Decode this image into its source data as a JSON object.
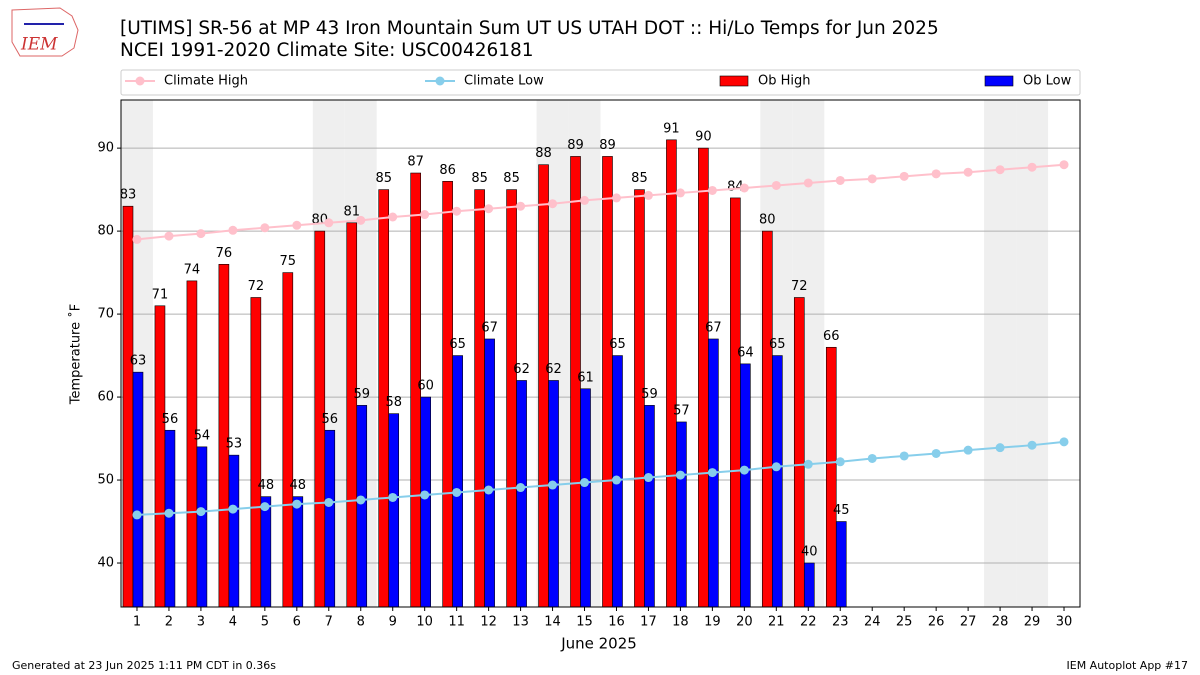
{
  "chart_data": {
    "type": "bar",
    "title": "[UTIMS] SR-56 at MP 43 Iron Mountain Sum UT US UTAH DOT :: Hi/Lo Temps for Jun 2025",
    "subtitle": "NCEI 1991-2020 Climate Site: USC00426181",
    "logo": "IEM",
    "x_label": "June 2025",
    "y_label": "Temperature ˚F",
    "footer_left": "Generated at 23 Jun 2025 1:11 PM CDT in 0.36s",
    "footer_right": "IEM Autoplot App #17",
    "x": [
      1,
      2,
      3,
      4,
      5,
      6,
      7,
      8,
      9,
      10,
      11,
      12,
      13,
      14,
      15,
      16,
      17,
      18,
      19,
      20,
      21,
      22,
      23,
      24,
      25,
      26,
      27,
      28,
      29,
      30
    ],
    "xlim": [
      0.5,
      30.5
    ],
    "xticks": [
      1,
      2,
      3,
      4,
      5,
      6,
      7,
      8,
      9,
      10,
      11,
      12,
      13,
      14,
      15,
      16,
      17,
      18,
      19,
      20,
      21,
      22,
      23,
      24,
      25,
      26,
      27,
      28,
      29,
      30
    ],
    "ylim": [
      34.7,
      95.8
    ],
    "yticks": [
      40,
      50,
      60,
      70,
      80,
      90
    ],
    "grid": true,
    "shaded_days": [
      1,
      7,
      8,
      14,
      15,
      21,
      22,
      28,
      29
    ],
    "shade_color": "#efefef",
    "series": [
      {
        "name": "Climate High",
        "kind": "line",
        "color": "#ffc0cb",
        "values": [
          79.0,
          79.4,
          79.7,
          80.1,
          80.4,
          80.7,
          81.0,
          81.3,
          81.7,
          82.0,
          82.4,
          82.7,
          83.0,
          83.3,
          83.7,
          84.0,
          84.3,
          84.6,
          84.9,
          85.2,
          85.5,
          85.8,
          86.1,
          86.3,
          86.6,
          86.9,
          87.1,
          87.4,
          87.7,
          88.0
        ]
      },
      {
        "name": "Climate Low",
        "kind": "line",
        "color": "#87ceeb",
        "values": [
          45.8,
          46.0,
          46.2,
          46.5,
          46.8,
          47.1,
          47.3,
          47.6,
          47.9,
          48.2,
          48.5,
          48.8,
          49.1,
          49.4,
          49.7,
          50.0,
          50.3,
          50.6,
          50.9,
          51.2,
          51.6,
          51.9,
          52.2,
          52.6,
          52.9,
          53.2,
          53.6,
          53.9,
          54.2,
          54.6
        ]
      },
      {
        "name": "Ob High",
        "kind": "bar",
        "color": "#ff0000",
        "values": [
          83,
          71,
          74,
          76,
          72,
          75,
          80,
          81,
          85,
          87,
          86,
          85,
          85,
          88,
          89,
          89,
          85,
          91,
          90,
          84,
          80,
          72,
          66,
          null,
          null,
          null,
          null,
          null,
          null,
          null
        ]
      },
      {
        "name": "Ob Low",
        "kind": "bar",
        "color": "#0000ff",
        "values": [
          63,
          56,
          54,
          53,
          48,
          48,
          56,
          59,
          58,
          60,
          65,
          67,
          62,
          62,
          61,
          65,
          59,
          57,
          67,
          64,
          65,
          40,
          45,
          null,
          null,
          null,
          null,
          null,
          null,
          null
        ]
      }
    ]
  }
}
